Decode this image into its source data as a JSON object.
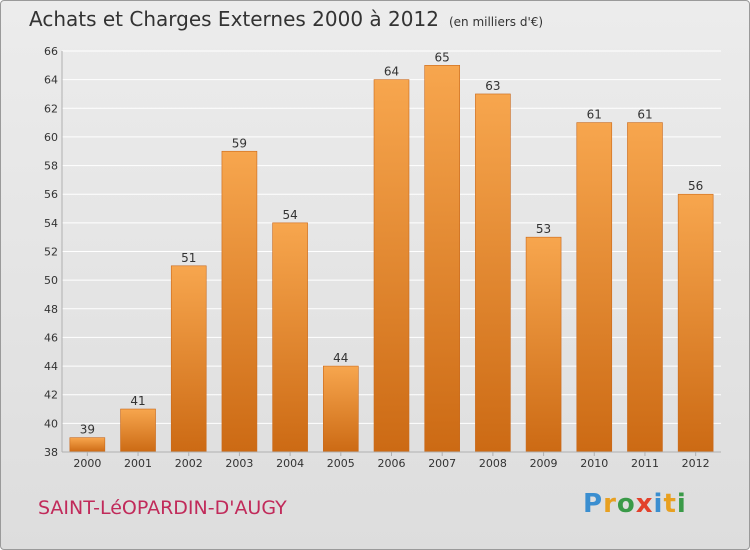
{
  "chart_data": {
    "type": "bar",
    "title": "Achats et Charges Externes 2000 à 2012",
    "unit_note": "(en milliers d'€)",
    "categories": [
      "2000",
      "2001",
      "2002",
      "2003",
      "2004",
      "2005",
      "2006",
      "2007",
      "2008",
      "2009",
      "2010",
      "2011",
      "2012"
    ],
    "values": [
      39,
      41,
      51,
      59,
      54,
      44,
      64,
      65,
      63,
      53,
      61,
      61,
      56
    ],
    "ylim": [
      38,
      66
    ],
    "yticks": [
      38,
      40,
      42,
      44,
      46,
      48,
      50,
      52,
      54,
      56,
      58,
      60,
      62,
      64,
      66
    ],
    "grid": true,
    "bar_color": "#f0922e"
  },
  "commune": "SAINT-LéOPARDIN-D'AUGY",
  "brand": {
    "name": "Proxiti"
  }
}
